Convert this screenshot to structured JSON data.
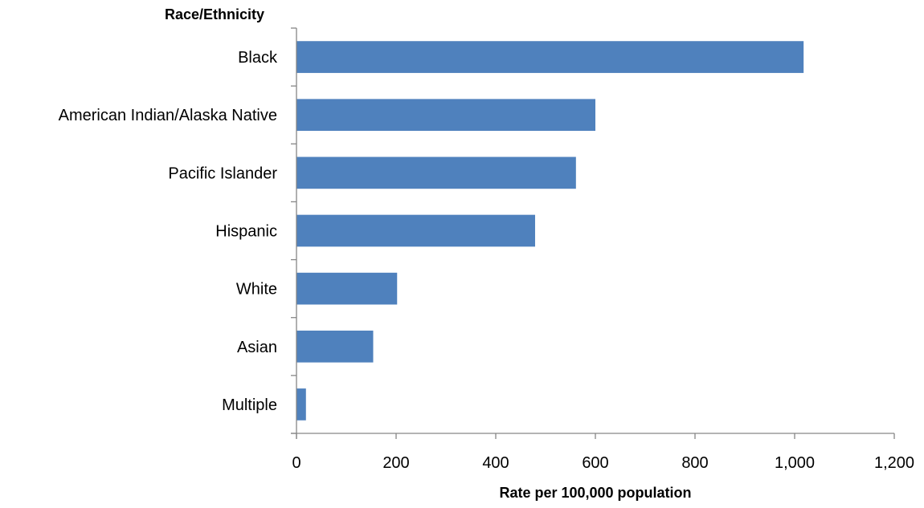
{
  "chart_data": {
    "type": "bar",
    "orientation": "horizontal",
    "categories": [
      "Black",
      "American Indian/Alaska Native",
      "Pacific Islander",
      "Hispanic",
      "White",
      "Asian",
      "Multiple"
    ],
    "values": [
      1018,
      600,
      561,
      479,
      202,
      154,
      19
    ],
    "title": "",
    "ylabel": "Race/Ethnicity",
    "xlabel": "Rate per 100,000 population",
    "xlim": [
      0,
      1200
    ],
    "xticks": [
      0,
      200,
      400,
      600,
      800,
      1000,
      1200
    ],
    "xtick_labels": [
      "0",
      "200",
      "400",
      "600",
      "800",
      "1,000",
      "1,200"
    ],
    "grid": false,
    "legend": "none",
    "bar_color": "#4F81BD"
  }
}
